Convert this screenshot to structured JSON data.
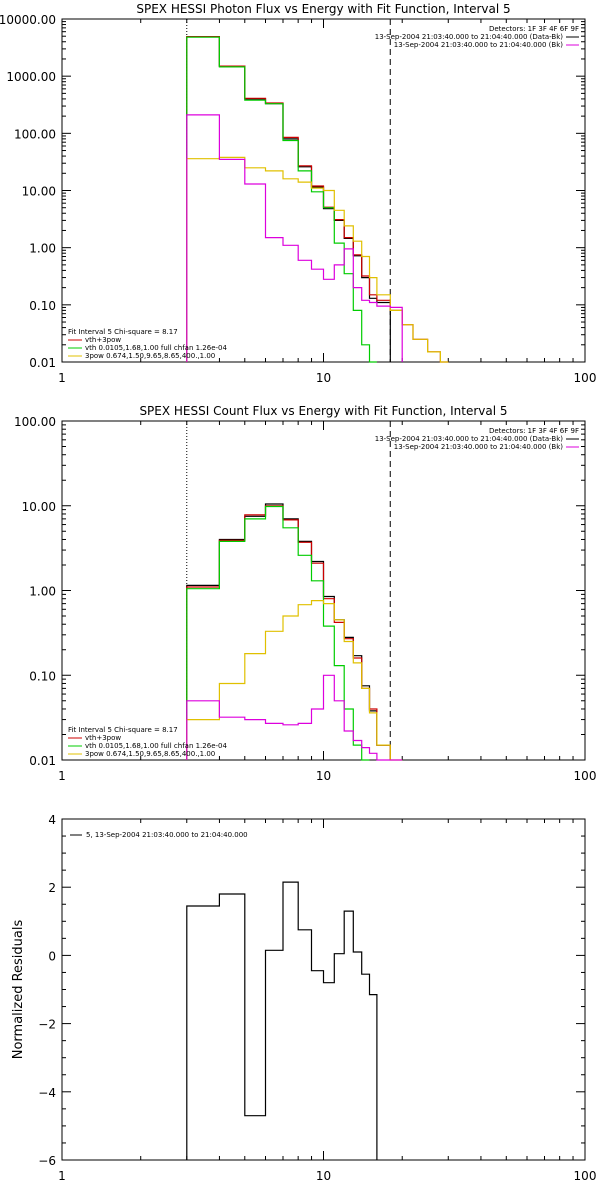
{
  "chart_data": [
    {
      "type": "line",
      "title": "SPEX HESSI Photon Flux vs Energy with Fit Function, Interval 5",
      "xlabel": "",
      "ylabel": "",
      "x_scale": "log",
      "y_scale": "log",
      "xlim": [
        1,
        100
      ],
      "ylim": [
        0.01,
        10000
      ],
      "x_ticks": [
        "1",
        "10",
        "100"
      ],
      "y_ticks": [
        "0.01",
        "0.10",
        "1.00",
        "10.00",
        "100.00",
        "1000.00",
        "10000.00"
      ],
      "grid": false,
      "legend_top_right": [
        "Detectors: 1F 3F 4F 6F 9F",
        "13-Sep-2004 21:03:40.000 to 21:04:40.000 (Data-Bk)",
        "13-Sep-2004 21:03:40.000 to 21:04:40.000 (Bk)"
      ],
      "legend_bottom_left": [
        "Fit Interval 5   Chi-square = 8.17",
        "vth+3pow",
        "vth 0.0105,1.68,1.00  full chfan 1.26e-04",
        "3pow 0.674,1.50,9.65,8.65,400.,1.00"
      ],
      "vlines": [
        {
          "x": 3.0,
          "style": "dotted"
        },
        {
          "x": 18.0,
          "style": "dashed"
        }
      ],
      "edges": [
        3,
        4,
        5,
        6,
        7,
        8,
        9,
        10,
        11,
        12,
        13,
        14,
        15,
        16,
        18,
        20,
        22,
        25,
        28,
        30
      ],
      "series": [
        {
          "name": "Data-Bk",
          "color": "#000000",
          "values": [
            4900,
            1500,
            400,
            330,
            80,
            26,
            11.5,
            4.8,
            3.0,
            1.45,
            0.72,
            0.3,
            0.13,
            0.11
          ]
        },
        {
          "name": "vth+3pow",
          "color": "#cc0000",
          "values": [
            4900,
            1500,
            410,
            340,
            85,
            27,
            12,
            5.1,
            3.1,
            1.5,
            0.75,
            0.32,
            0.15,
            0.12,
            0.08,
            0.045,
            0.025,
            0.015,
            0.01
          ]
        },
        {
          "name": "vth",
          "color": "#00cc00",
          "values": [
            4800,
            1450,
            380,
            330,
            75,
            22,
            9.5,
            5.0,
            1.2,
            0.35,
            0.08,
            0.02,
            0.006
          ]
        },
        {
          "name": "3pow",
          "color": "#e0c000",
          "values": [
            36,
            38,
            25,
            22,
            16,
            14,
            11,
            10,
            4.5,
            2.4,
            1.3,
            0.7,
            0.3,
            0.15,
            0.08,
            0.045,
            0.025,
            0.015,
            0.01
          ]
        },
        {
          "name": "Bk",
          "color": "#dd00dd",
          "values": [
            210,
            35,
            13,
            1.5,
            1.1,
            0.6,
            0.42,
            0.28,
            0.5,
            0.95,
            0.2,
            0.12,
            0.11,
            0.095,
            0.09
          ]
        }
      ]
    },
    {
      "type": "line",
      "title": "SPEX HESSI Count Flux vs Energy with Fit Function, Interval 5",
      "xlabel": "",
      "ylabel": "",
      "x_scale": "log",
      "y_scale": "log",
      "xlim": [
        1,
        100
      ],
      "ylim": [
        0.01,
        100
      ],
      "x_ticks": [
        "1",
        "10",
        "100"
      ],
      "y_ticks": [
        "0.01",
        "0.10",
        "1.00",
        "10.00",
        "100.00"
      ],
      "grid": false,
      "legend_top_right": [
        "Detectors: 1F 3F 4F 6F 9F",
        "13-Sep-2004 21:03:40.000 to 21:04:40.000 (Data-Bk)",
        "13-Sep-2004 21:03:40.000 to 21:04:40.000 (Bk)"
      ],
      "legend_bottom_left": [
        "Fit Interval 5   Chi-square = 8.17",
        "vth+3pow",
        "vth 0.0105,1.68,1.00  full chfan 1.26e-04",
        "3pow 0.674,1.50,9.65,8.65,400.,1.00"
      ],
      "vlines": [
        {
          "x": 3.0,
          "style": "dotted"
        },
        {
          "x": 18.0,
          "style": "dashed"
        }
      ],
      "edges": [
        3,
        4,
        5,
        6,
        7,
        8,
        9,
        10,
        11,
        12,
        13,
        14,
        15,
        16,
        18,
        20,
        22,
        25
      ],
      "series": [
        {
          "name": "Data-Bk",
          "color": "#000000",
          "values": [
            1.15,
            4.0,
            7.5,
            10.5,
            7.0,
            3.8,
            2.2,
            0.85,
            0.45,
            0.28,
            0.17,
            0.075,
            0.038,
            0.015
          ]
        },
        {
          "name": "vth+3pow",
          "color": "#cc0000",
          "values": [
            1.1,
            3.9,
            7.8,
            10.0,
            6.8,
            3.7,
            2.1,
            0.8,
            0.42,
            0.27,
            0.16,
            0.07,
            0.04,
            0.015
          ]
        },
        {
          "name": "vth",
          "color": "#00cc00",
          "values": [
            1.05,
            3.8,
            7.0,
            9.8,
            5.5,
            2.6,
            1.3,
            0.38,
            0.13,
            0.04,
            0.015,
            0.009
          ]
        },
        {
          "name": "3pow",
          "color": "#e0c000",
          "values": [
            0.03,
            0.08,
            0.18,
            0.33,
            0.5,
            0.68,
            0.76,
            0.7,
            0.45,
            0.25,
            0.14,
            0.07,
            0.036,
            0.015,
            0.008
          ]
        },
        {
          "name": "Bk",
          "color": "#dd00dd",
          "values": [
            0.05,
            0.032,
            0.03,
            0.027,
            0.026,
            0.027,
            0.04,
            0.1,
            0.05,
            0.022,
            0.017,
            0.014,
            0.012,
            0.01,
            0.009
          ]
        }
      ]
    },
    {
      "type": "line",
      "title": "",
      "xlabel": "",
      "ylabel": "Normalized Residuals",
      "x_scale": "log",
      "y_scale": "linear",
      "xlim": [
        1,
        100
      ],
      "ylim": [
        -6,
        4
      ],
      "x_ticks": [
        "1",
        "10",
        "100"
      ],
      "y_ticks": [
        "4",
        "2",
        "0",
        "−2",
        "−4",
        "−6"
      ],
      "grid": false,
      "legend_top_left": [
        "5, 13-Sep-2004 21:03:40.000 to 21:04:40.000"
      ],
      "edges": [
        3,
        4,
        5,
        6,
        7,
        8,
        9,
        10,
        11,
        12,
        13,
        14,
        15,
        16,
        18
      ],
      "series": [
        {
          "name": "5, 13-Sep-2004 21:03:40.000 to 21:04:40.000",
          "color": "#000000",
          "values": [
            1.45,
            1.8,
            -4.7,
            0.15,
            2.15,
            0.75,
            -0.45,
            -0.8,
            0.05,
            1.3,
            0.1,
            -0.55,
            -1.15
          ]
        }
      ]
    }
  ]
}
